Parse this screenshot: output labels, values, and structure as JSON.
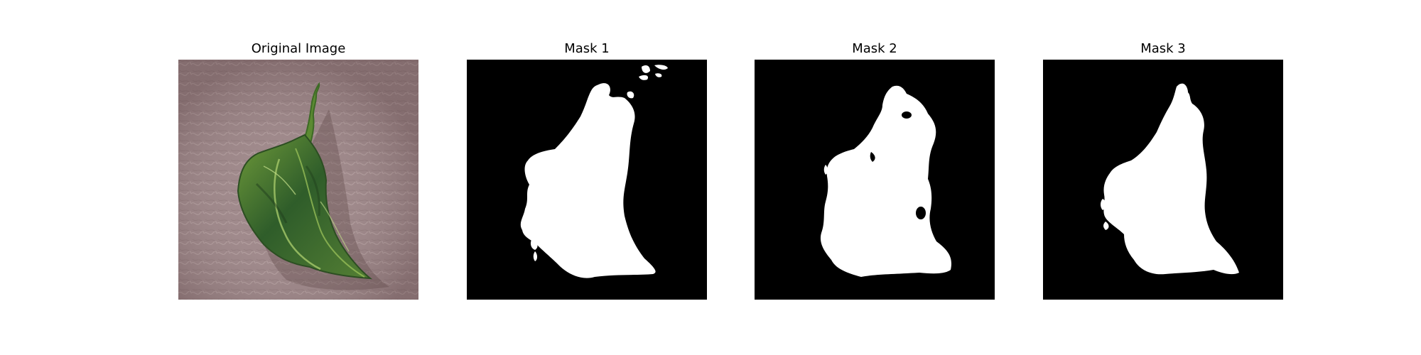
{
  "figure": {
    "background_color": "#ffffff",
    "panels": [
      {
        "title": "Original Image",
        "kind": "photo",
        "background_color": "#9a8284",
        "object_color": "#3f6b2f"
      },
      {
        "title": "Mask 1",
        "kind": "binary-mask",
        "background_color": "#000000",
        "mask_color": "#ffffff"
      },
      {
        "title": "Mask 2",
        "kind": "binary-mask",
        "background_color": "#000000",
        "mask_color": "#ffffff"
      },
      {
        "title": "Mask 3",
        "kind": "binary-mask",
        "background_color": "#000000",
        "mask_color": "#ffffff"
      }
    ]
  }
}
